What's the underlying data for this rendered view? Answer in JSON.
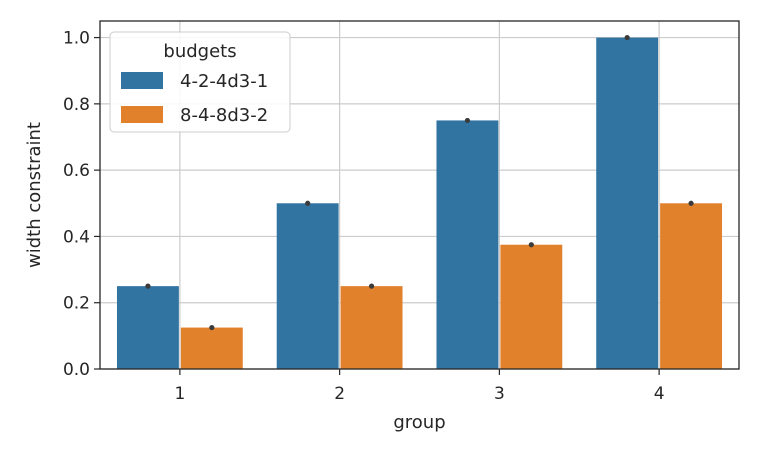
{
  "chart_data": {
    "type": "bar",
    "xlabel": "group",
    "ylabel": "width constraint",
    "categories": [
      "1",
      "2",
      "3",
      "4"
    ],
    "ylim": [
      0,
      1.05
    ],
    "yticks": [
      0.0,
      0.2,
      0.4,
      0.6,
      0.8,
      1.0
    ],
    "ytick_labels": [
      "0.0",
      "0.2",
      "0.4",
      "0.6",
      "0.8",
      "1.0"
    ],
    "grid": true,
    "legend": {
      "title": "budgets",
      "placement": "top-left"
    },
    "series": [
      {
        "name": "4-2-4d3-1",
        "color": "#3274a1",
        "values": [
          0.25,
          0.5,
          0.75,
          1.0
        ]
      },
      {
        "name": "8-4-8d3-2",
        "color": "#e1812c",
        "values": [
          0.125,
          0.25,
          0.375,
          0.5
        ]
      }
    ]
  }
}
